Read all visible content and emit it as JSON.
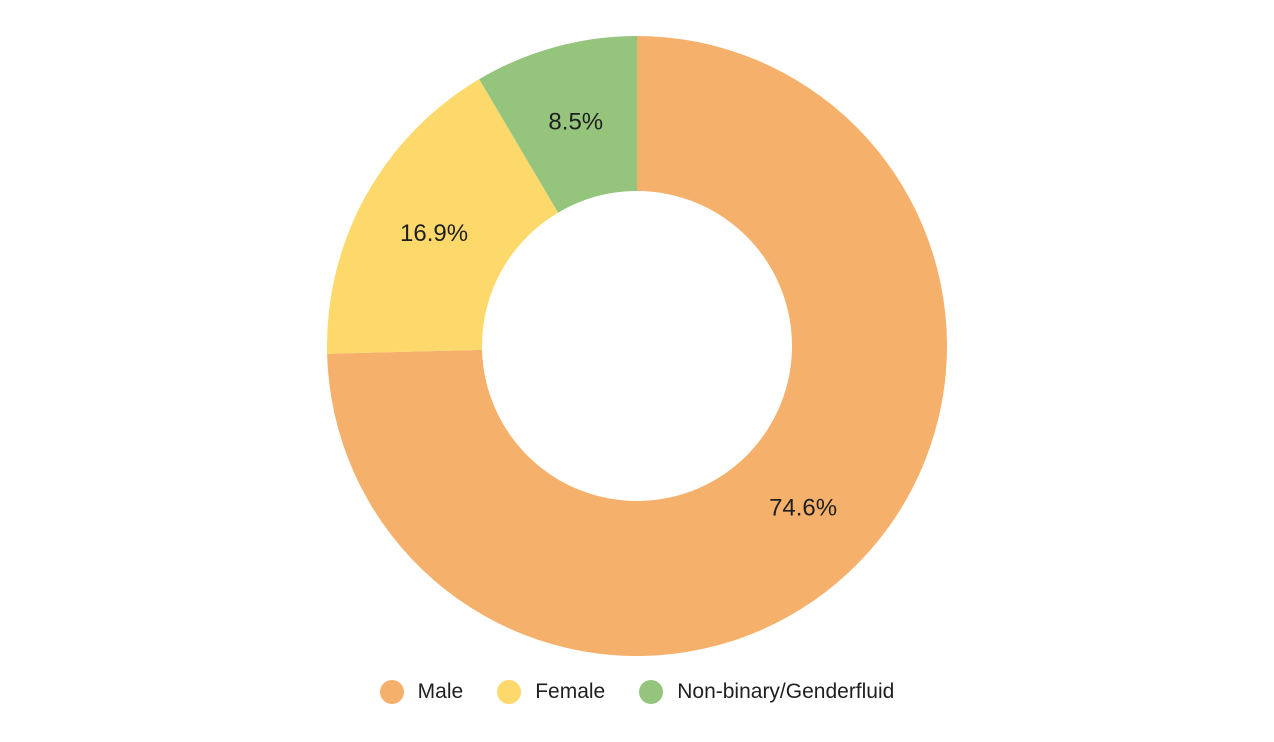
{
  "chart_data": {
    "type": "pie",
    "subtype": "donut",
    "title": "",
    "start_angle_deg": 0,
    "direction": "clockwise",
    "legend_position": "bottom",
    "slices": [
      {
        "name": "Male",
        "value": 74.6,
        "label": "74.6%",
        "color": "#F5B16B"
      },
      {
        "name": "Female",
        "value": 16.9,
        "label": "16.9%",
        "color": "#FDD96B"
      },
      {
        "name": "Non-binary/Genderfluid",
        "value": 8.5,
        "label": "8.5%",
        "color": "#95C47D"
      }
    ]
  },
  "legend": {
    "items": [
      {
        "label": "Male",
        "color": "#F5B16B"
      },
      {
        "label": "Female",
        "color": "#FDD96B"
      },
      {
        "label": "Non-binary/Genderfluid",
        "color": "#95C47D"
      }
    ]
  }
}
